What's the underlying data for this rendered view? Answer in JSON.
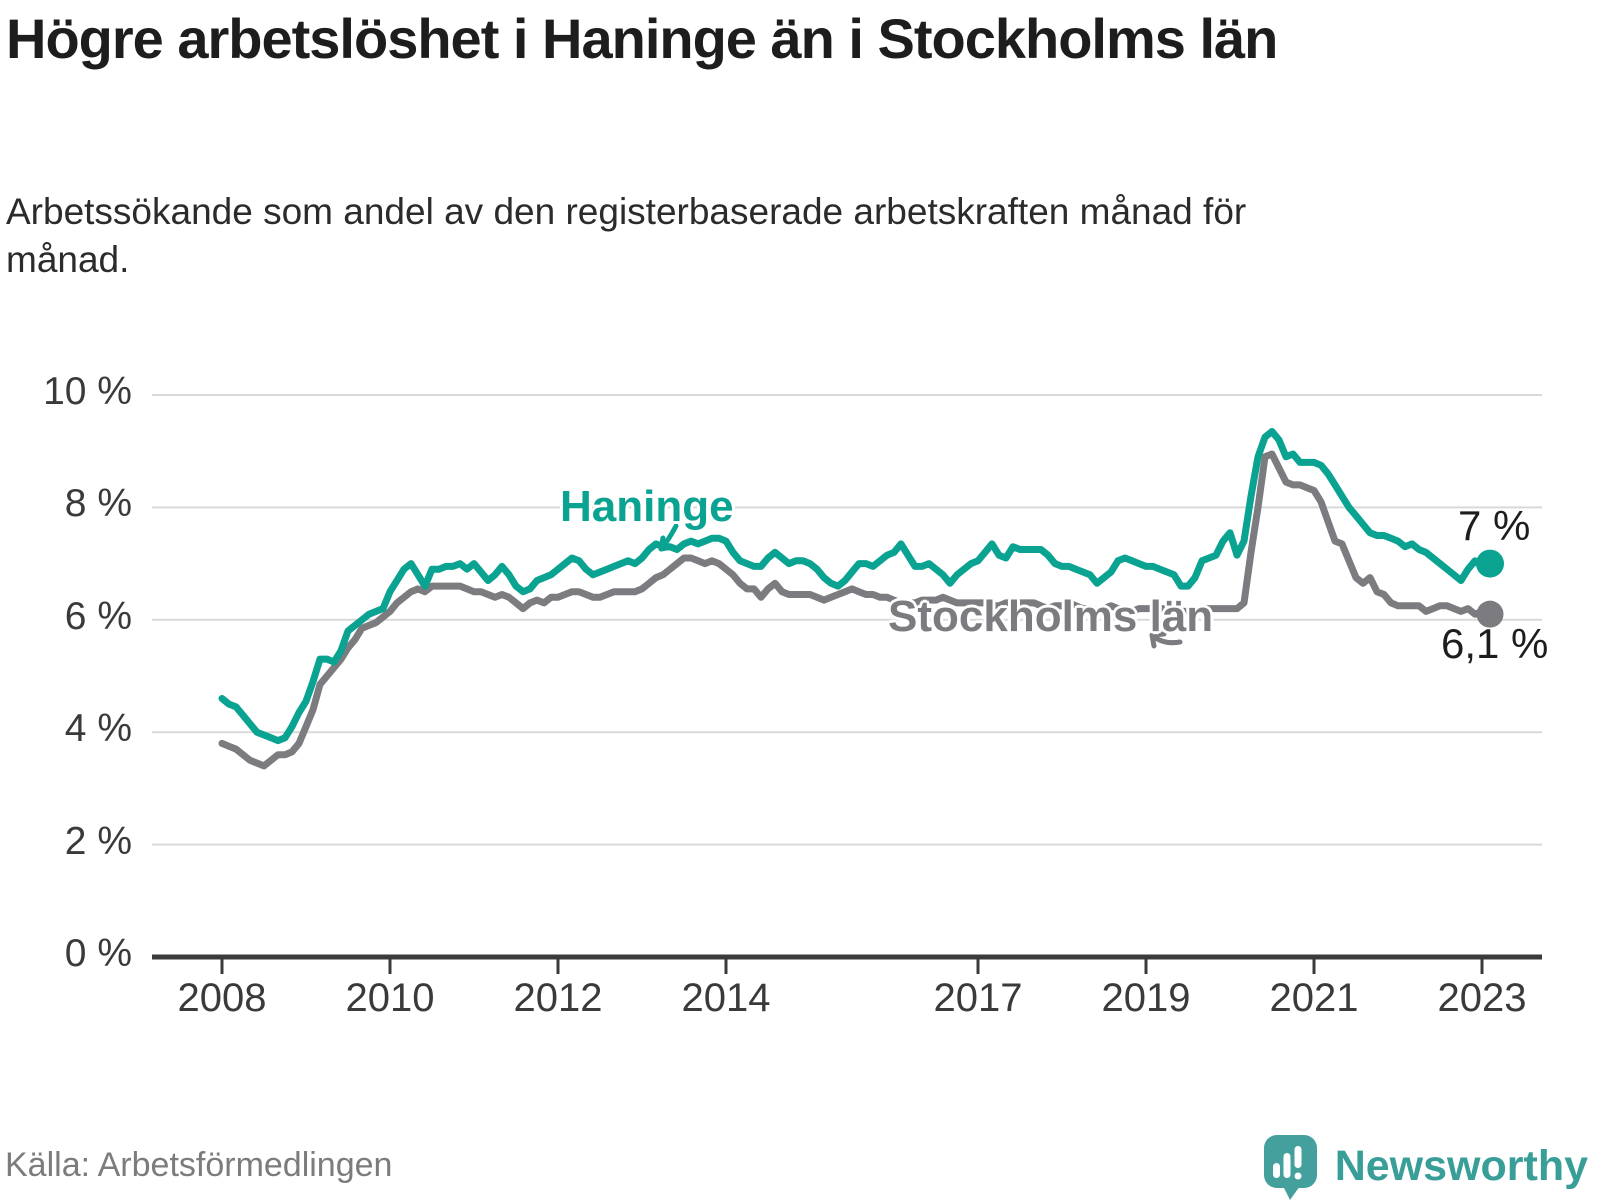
{
  "header": {
    "title": "Högre arbetslöshet i Haninge än i Stockholms län",
    "subtitle": "Arbetssökande som andel av den registerbaserade arbetskraften månad för månad."
  },
  "chart_data": {
    "type": "line",
    "unit": "%",
    "frequency": "monthly",
    "x_start": "2008-01",
    "x_end": "2023-02",
    "ylim": [
      0,
      10
    ],
    "grid": "horizontal",
    "y_tick_values": [
      10,
      8,
      6,
      4,
      2,
      0
    ],
    "y_tick_labels": [
      "10 %",
      "8 %",
      "6 %",
      "4 %",
      "2 %",
      "0 %"
    ],
    "x_tick_years": [
      2008,
      2010,
      2012,
      2014,
      2017,
      2019,
      2021,
      2023
    ],
    "x_tick_labels": [
      "2008",
      "2010",
      "2012",
      "2014",
      "2017",
      "2019",
      "2021",
      "2023"
    ],
    "series": [
      {
        "name": "Haninge",
        "color": "#0aa291",
        "end_label": "7 %",
        "end_value": 7.0,
        "values": [
          4.6,
          4.5,
          4.45,
          4.3,
          4.15,
          4.0,
          3.95,
          3.9,
          3.85,
          3.9,
          4.1,
          4.35,
          4.55,
          4.9,
          5.3,
          5.3,
          5.25,
          5.45,
          5.8,
          5.9,
          6.0,
          6.1,
          6.15,
          6.2,
          6.5,
          6.7,
          6.9,
          7.0,
          6.8,
          6.6,
          6.9,
          6.9,
          6.95,
          6.95,
          7.0,
          6.9,
          7.0,
          6.85,
          6.7,
          6.8,
          6.95,
          6.8,
          6.6,
          6.5,
          6.55,
          6.7,
          6.75,
          6.8,
          6.9,
          7.0,
          7.1,
          7.05,
          6.9,
          6.8,
          6.85,
          6.9,
          6.95,
          7.0,
          7.05,
          7.0,
          7.1,
          7.25,
          7.35,
          7.3,
          7.3,
          7.25,
          7.35,
          7.4,
          7.35,
          7.4,
          7.45,
          7.45,
          7.4,
          7.2,
          7.05,
          7.0,
          6.95,
          6.95,
          7.1,
          7.2,
          7.1,
          7.0,
          7.05,
          7.05,
          7.0,
          6.9,
          6.75,
          6.65,
          6.6,
          6.7,
          6.85,
          7.0,
          7.0,
          6.95,
          7.05,
          7.15,
          7.2,
          7.35,
          7.15,
          6.95,
          6.95,
          7.0,
          6.9,
          6.8,
          6.65,
          6.8,
          6.9,
          7.0,
          7.05,
          7.2,
          7.35,
          7.15,
          7.1,
          7.3,
          7.25,
          7.25,
          7.25,
          7.25,
          7.15,
          7.0,
          6.95,
          6.95,
          6.9,
          6.85,
          6.8,
          6.65,
          6.75,
          6.85,
          7.05,
          7.1,
          7.05,
          7.0,
          6.95,
          6.95,
          6.9,
          6.85,
          6.8,
          6.6,
          6.6,
          6.75,
          7.05,
          7.1,
          7.15,
          7.4,
          7.55,
          7.15,
          7.4,
          8.2,
          8.9,
          9.25,
          9.35,
          9.2,
          8.9,
          8.95,
          8.8,
          8.8,
          8.8,
          8.75,
          8.6,
          8.4,
          8.2,
          8.0,
          7.85,
          7.7,
          7.55,
          7.5,
          7.5,
          7.45,
          7.4,
          7.3,
          7.35,
          7.25,
          7.2,
          7.1,
          7.0,
          6.9,
          6.8,
          6.7,
          6.9,
          7.05,
          6.95,
          7.0
        ]
      },
      {
        "name": "Stockholms län",
        "color": "#7b7b80",
        "end_label": "6,1 %",
        "end_value": 6.1,
        "values": [
          3.8,
          3.75,
          3.7,
          3.6,
          3.5,
          3.45,
          3.4,
          3.5,
          3.6,
          3.6,
          3.65,
          3.8,
          4.1,
          4.4,
          4.85,
          5.0,
          5.15,
          5.3,
          5.5,
          5.65,
          5.85,
          5.9,
          5.95,
          6.05,
          6.15,
          6.3,
          6.4,
          6.5,
          6.55,
          6.5,
          6.6,
          6.6,
          6.6,
          6.6,
          6.6,
          6.55,
          6.5,
          6.5,
          6.45,
          6.4,
          6.45,
          6.4,
          6.3,
          6.2,
          6.3,
          6.35,
          6.3,
          6.4,
          6.4,
          6.45,
          6.5,
          6.5,
          6.45,
          6.4,
          6.4,
          6.45,
          6.5,
          6.5,
          6.5,
          6.5,
          6.55,
          6.65,
          6.75,
          6.8,
          6.9,
          7.0,
          7.1,
          7.1,
          7.05,
          7.0,
          7.05,
          7.0,
          6.9,
          6.8,
          6.65,
          6.55,
          6.55,
          6.4,
          6.55,
          6.65,
          6.5,
          6.45,
          6.45,
          6.45,
          6.45,
          6.4,
          6.35,
          6.4,
          6.45,
          6.5,
          6.55,
          6.5,
          6.45,
          6.45,
          6.4,
          6.4,
          6.35,
          6.3,
          6.3,
          6.3,
          6.35,
          6.35,
          6.35,
          6.4,
          6.35,
          6.3,
          6.3,
          6.3,
          6.3,
          6.3,
          6.25,
          6.25,
          6.3,
          6.3,
          6.3,
          6.3,
          6.3,
          6.25,
          6.2,
          6.25,
          6.25,
          6.3,
          6.25,
          6.2,
          6.2,
          6.15,
          6.2,
          6.25,
          6.2,
          6.2,
          6.15,
          6.2,
          6.2,
          6.2,
          6.2,
          6.2,
          6.15,
          6.15,
          6.15,
          6.15,
          6.2,
          6.2,
          6.2,
          6.2,
          6.2,
          6.2,
          6.3,
          7.2,
          8.0,
          8.9,
          8.95,
          8.7,
          8.45,
          8.4,
          8.4,
          8.35,
          8.3,
          8.1,
          7.75,
          7.4,
          7.35,
          7.05,
          6.75,
          6.65,
          6.75,
          6.5,
          6.45,
          6.3,
          6.25,
          6.25,
          6.25,
          6.25,
          6.15,
          6.2,
          6.25,
          6.25,
          6.2,
          6.15,
          6.2,
          6.1,
          6.15,
          6.1
        ]
      }
    ]
  },
  "footer": {
    "source": "Källa: Arbetsförmedlingen",
    "brand": "Newsworthy"
  },
  "colors": {
    "teal": "#0aa291",
    "gray": "#7b7b80",
    "axis": "#3b3b3b",
    "grid": "#d9d9d9",
    "text_dark": "#1d1d1d",
    "muted_text": "#7c7c7c",
    "logo_teal": "#44a09c",
    "brand_text": "#399e98"
  }
}
